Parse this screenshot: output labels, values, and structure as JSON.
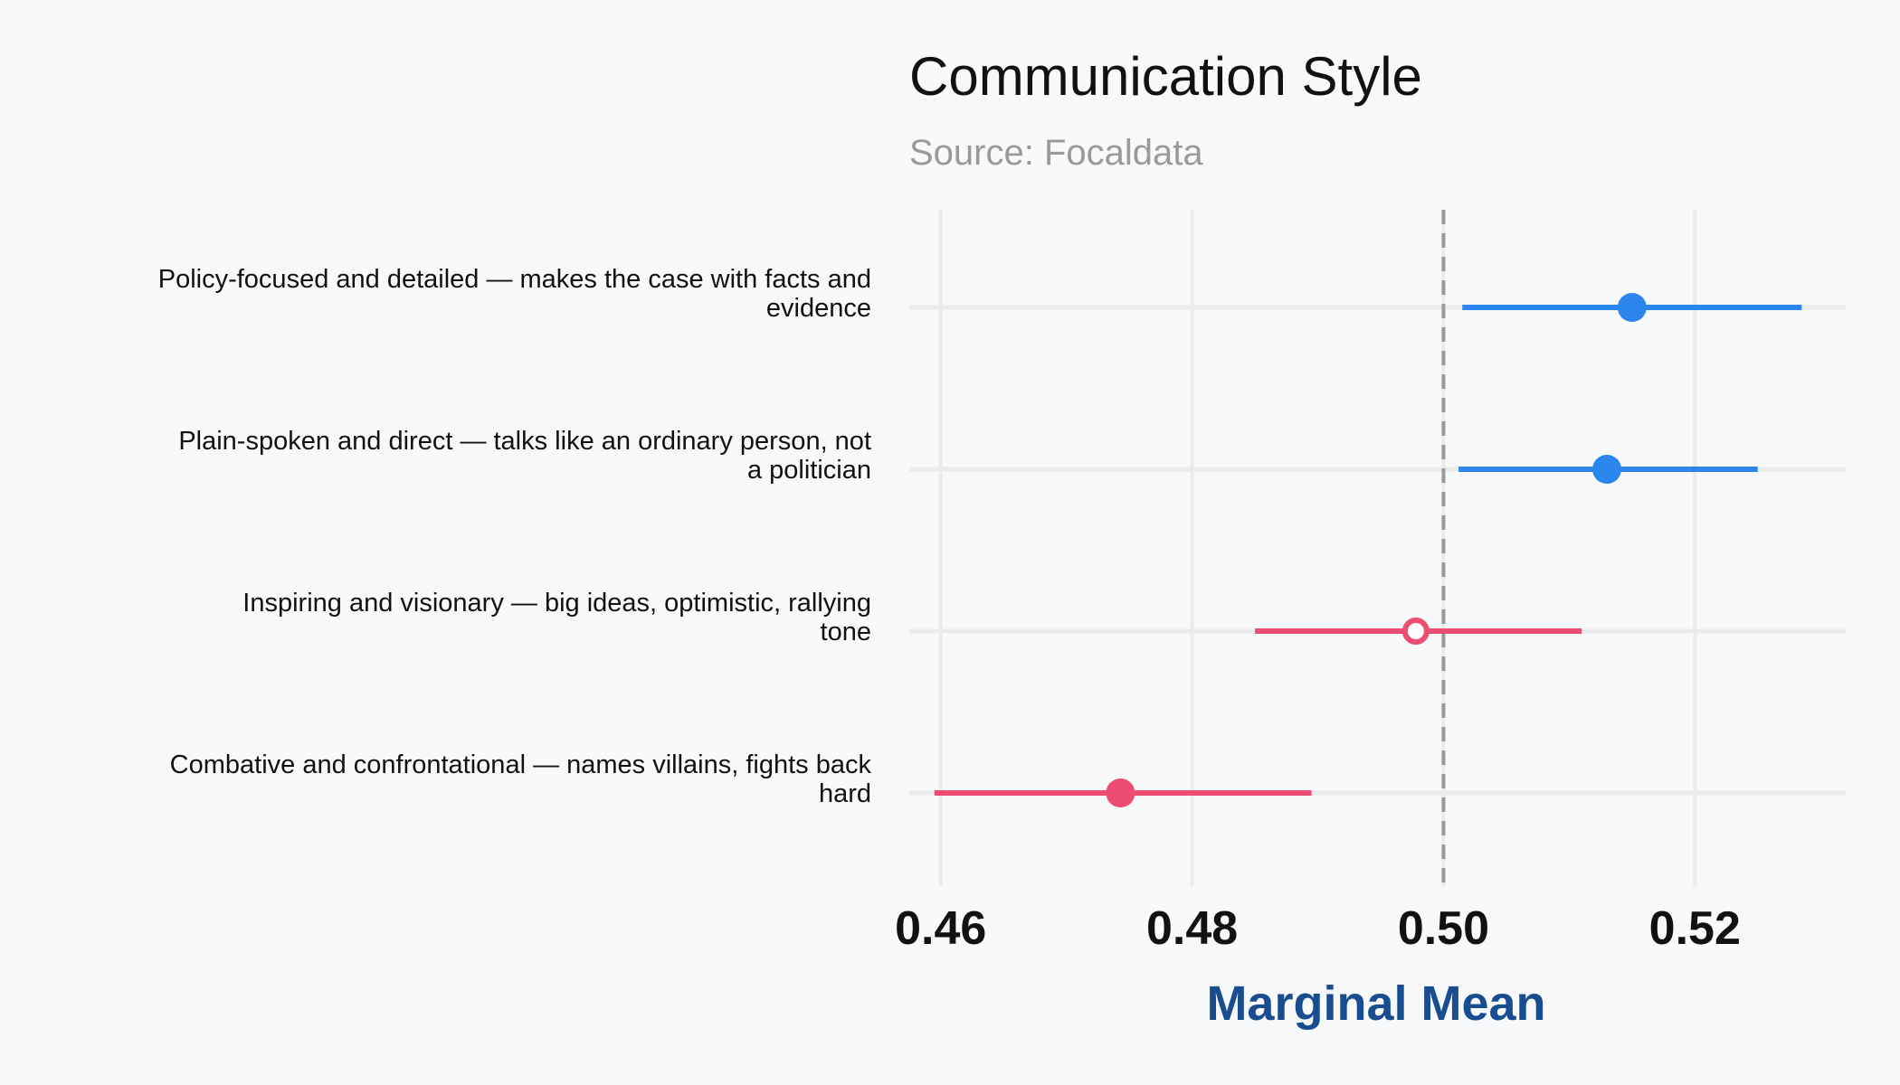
{
  "chart_data": {
    "type": "scatter",
    "subtype": "dot-and-whisker",
    "title": "Communication Style",
    "subtitle": "Source: Focaldata",
    "xlabel": "Marginal Mean",
    "ylabel": "",
    "xlim": [
      0.4575,
      0.532
    ],
    "xticks": [
      0.46,
      0.48,
      0.5,
      0.52
    ],
    "xtick_labels": [
      "0.46",
      "0.48",
      "0.50",
      "0.52"
    ],
    "reference_line": 0.5,
    "grid": true,
    "legend": "none",
    "colors": {
      "positive": "#2b86ee",
      "negative": "#ec4d70",
      "reference": "#9a9a9a"
    },
    "items": [
      {
        "label_lines": [
          "Policy-focused and detailed — makes the case with facts and",
          "evidence"
        ],
        "estimate": 0.515,
        "lower": 0.5015,
        "upper": 0.5285,
        "color": "positive",
        "marker": "filled"
      },
      {
        "label_lines": [
          "Plain-spoken and direct — talks like an ordinary person, not",
          "a politician"
        ],
        "estimate": 0.513,
        "lower": 0.5012,
        "upper": 0.525,
        "color": "positive",
        "marker": "filled"
      },
      {
        "label_lines": [
          "Inspiring and visionary — big ideas, optimistic, rallying",
          "tone"
        ],
        "estimate": 0.4978,
        "lower": 0.485,
        "upper": 0.511,
        "color": "negative",
        "marker": "hollow"
      },
      {
        "label_lines": [
          "Combative and confrontational — names villains, fights back",
          "hard"
        ],
        "estimate": 0.4743,
        "lower": 0.4595,
        "upper": 0.4895,
        "color": "negative",
        "marker": "filled"
      }
    ]
  }
}
